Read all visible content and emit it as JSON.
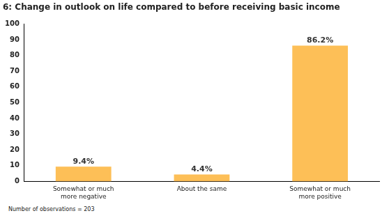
{
  "chart_data": {
    "type": "bar",
    "title": "6: Change in outlook on life compared to before receiving basic income",
    "categories": [
      "Somewhat or much more negative",
      "About the same",
      "Somewhat or much more positive"
    ],
    "values": [
      9.4,
      4.4,
      86.2
    ],
    "value_labels": [
      "9.4%",
      "4.4%",
      "86.2%"
    ],
    "data_labels": true,
    "color": "#fdbf57",
    "ylim": [
      0,
      100
    ],
    "yticks": [
      0,
      10,
      20,
      30,
      40,
      50,
      60,
      70,
      80,
      90,
      100
    ],
    "grid": false,
    "annotations": [
      "Number of observations = 203"
    ]
  }
}
